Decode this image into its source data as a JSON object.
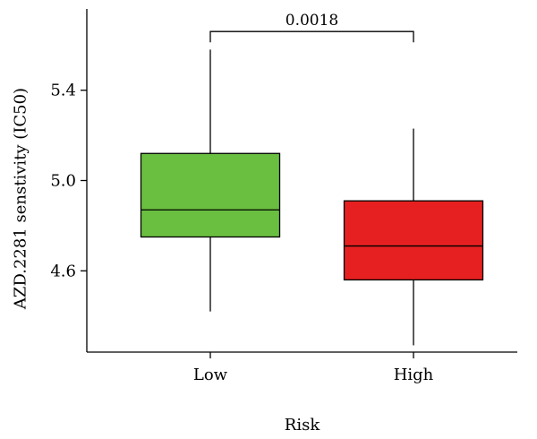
{
  "chart_data": {
    "type": "box",
    "title": "",
    "xlabel": "Risk",
    "ylabel": "AZD.2281 senstivity (IC50)",
    "ylim": [
      4.24,
      5.76
    ],
    "yticks": [
      4.6,
      5.0,
      5.4
    ],
    "ytick_labels": [
      "4.6",
      "5.0",
      "5.4"
    ],
    "categories": [
      "Low",
      "High"
    ],
    "groups": [
      {
        "category": "Low",
        "min": 4.42,
        "q1": 4.75,
        "median": 4.87,
        "q3": 5.12,
        "max": 5.58,
        "color": "#6abf40"
      },
      {
        "category": "High",
        "min": 4.27,
        "q1": 4.56,
        "median": 4.71,
        "q3": 4.91,
        "max": 5.23,
        "color": "#e62020"
      }
    ],
    "significance": {
      "label": "0.0018",
      "y": 5.66
    },
    "grid": false,
    "legend": "none"
  }
}
